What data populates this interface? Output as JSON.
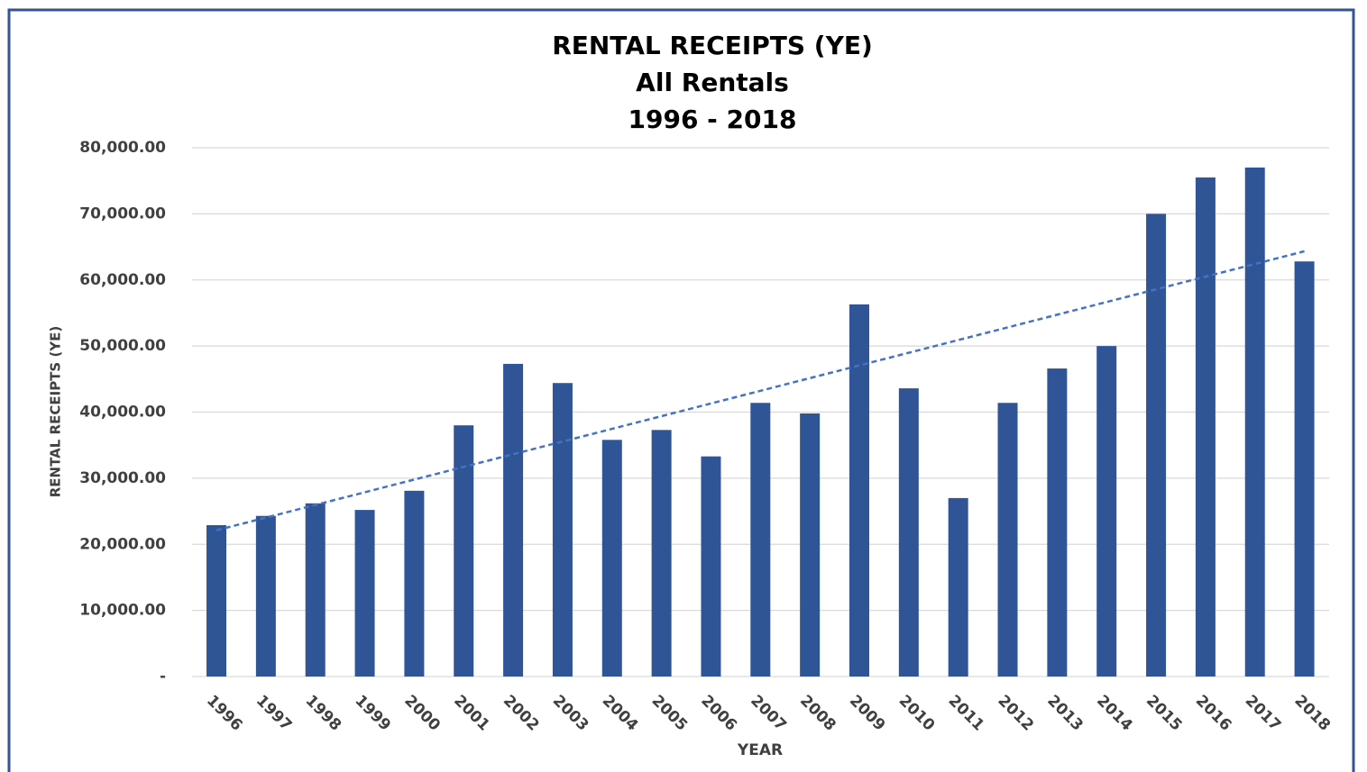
{
  "chart_data": {
    "type": "bar",
    "title": [
      "RENTAL RECEIPTS (YE)",
      "All Rentals",
      "1996 - 2018"
    ],
    "x_label": "YEAR",
    "y_label": "RENTAL RECEIPTS (YE)",
    "categories": [
      "1996",
      "1997",
      "1998",
      "1999",
      "2000",
      "2001",
      "2002",
      "2003",
      "2004",
      "2005",
      "2006",
      "2007",
      "2008",
      "2009",
      "2010",
      "2011",
      "2012",
      "2013",
      "2014",
      "2015",
      "2016",
      "2017",
      "2018"
    ],
    "values": [
      22900,
      24300,
      26200,
      25200,
      28100,
      38000,
      47300,
      44400,
      35800,
      37300,
      33300,
      41400,
      39800,
      56300,
      43600,
      27000,
      41400,
      46600,
      50000,
      70000,
      75500,
      77000,
      62800
    ],
    "color": "#2f5597",
    "trendline": true,
    "trendline_color": "#4472c4",
    "ylim": [
      0,
      80000
    ],
    "yticks": [
      {
        "value": 0,
        "label": "-"
      },
      {
        "value": 10000,
        "label": "10,000.00"
      },
      {
        "value": 20000,
        "label": "20,000.00"
      },
      {
        "value": 30000,
        "label": "30,000.00"
      },
      {
        "value": 40000,
        "label": "40,000.00"
      },
      {
        "value": 50000,
        "label": "50,000.00"
      },
      {
        "value": 60000,
        "label": "60,000.00"
      },
      {
        "value": 70000,
        "label": "70,000.00"
      },
      {
        "value": 80000,
        "label": "80,000.00"
      }
    ],
    "grid": true
  }
}
